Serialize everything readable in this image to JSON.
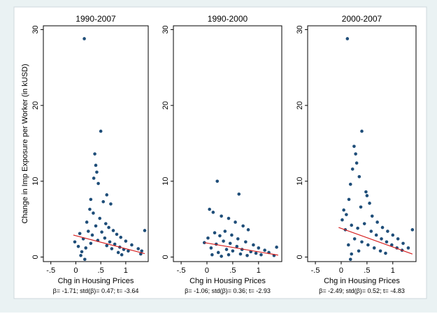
{
  "chart_data": [
    {
      "type": "scatter",
      "title": "1990-2007",
      "xlabel": "Chg in Housing Prices",
      "ylabel": "Change in Imp Exposure per Worker (in kUSD)",
      "note": "β= -1.71; std(β)= 0.47; t= -3.64",
      "xlim": [
        -0.65,
        1.45
      ],
      "ylim": [
        -0.6,
        30.5
      ],
      "xticks": [
        -0.5,
        0,
        0.5,
        1
      ],
      "xticklabels": [
        "-.5",
        "0",
        ".5",
        "1"
      ],
      "yticks": [
        0,
        10,
        20,
        30
      ],
      "yticklabels": [
        "0",
        "10",
        "20",
        "30"
      ],
      "fit": {
        "x": [
          -0.05,
          1.38
        ],
        "y": [
          2.9,
          0.45
        ]
      },
      "points": [
        [
          0.17,
          28.8
        ],
        [
          0.5,
          16.6
        ],
        [
          0.38,
          13.6
        ],
        [
          0.4,
          12.1
        ],
        [
          0.42,
          11.2
        ],
        [
          0.36,
          10.4
        ],
        [
          0.45,
          9.7
        ],
        [
          0.62,
          8.2
        ],
        [
          0.3,
          7.6
        ],
        [
          0.55,
          7.3
        ],
        [
          0.7,
          7.0
        ],
        [
          -0.02,
          2.0
        ],
        [
          0.08,
          3.1
        ],
        [
          0.22,
          4.6
        ],
        [
          0.28,
          6.3
        ],
        [
          0.35,
          5.8
        ],
        [
          0.48,
          5.1
        ],
        [
          0.6,
          4.4
        ],
        [
          0.66,
          3.9
        ],
        [
          0.75,
          3.5
        ],
        [
          0.82,
          3.0
        ],
        [
          0.9,
          2.6
        ],
        [
          1.0,
          2.1
        ],
        [
          1.12,
          1.6
        ],
        [
          1.25,
          1.1
        ],
        [
          1.32,
          0.8
        ],
        [
          1.38,
          3.5
        ],
        [
          1.3,
          0.4
        ],
        [
          0.05,
          1.4
        ],
        [
          0.15,
          2.4
        ],
        [
          0.25,
          3.4
        ],
        [
          0.33,
          2.9
        ],
        [
          0.4,
          4.1
        ],
        [
          0.52,
          3.3
        ],
        [
          0.58,
          2.5
        ],
        [
          0.68,
          2.0
        ],
        [
          0.78,
          1.7
        ],
        [
          0.88,
          1.3
        ],
        [
          0.96,
          1.0
        ],
        [
          1.05,
          0.8
        ],
        [
          0.12,
          0.7
        ],
        [
          0.2,
          1.2
        ],
        [
          0.3,
          1.8
        ],
        [
          0.44,
          2.2
        ],
        [
          0.62,
          1.5
        ],
        [
          0.72,
          1.1
        ],
        [
          0.85,
          0.6
        ],
        [
          0.92,
          0.3
        ],
        [
          0.18,
          -0.3
        ],
        [
          0.1,
          0.2
        ]
      ]
    },
    {
      "type": "scatter",
      "title": "1990-2000",
      "xlabel": "Chg in Housing Prices",
      "ylabel": "",
      "note": "β= -1.06; std(β)= 0.36; t= -2.93",
      "xlim": [
        -0.65,
        1.45
      ],
      "ylim": [
        -0.6,
        30.5
      ],
      "xticks": [
        -0.5,
        0,
        0.5,
        1
      ],
      "xticklabels": [
        "-.5",
        "0",
        ".5",
        "1"
      ],
      "yticks": [
        0,
        10,
        20,
        30
      ],
      "yticklabels": [
        "0",
        "10",
        "20",
        "30"
      ],
      "fit": {
        "x": [
          -0.05,
          1.38
        ],
        "y": [
          1.9,
          0.25
        ]
      },
      "points": [
        [
          0.2,
          10.0
        ],
        [
          0.62,
          8.3
        ],
        [
          0.05,
          6.3
        ],
        [
          0.12,
          5.9
        ],
        [
          0.28,
          5.4
        ],
        [
          0.42,
          5.1
        ],
        [
          0.55,
          4.6
        ],
        [
          0.7,
          4.1
        ],
        [
          0.8,
          3.6
        ],
        [
          -0.05,
          1.9
        ],
        [
          0.02,
          2.5
        ],
        [
          0.15,
          3.2
        ],
        [
          0.25,
          2.8
        ],
        [
          0.35,
          3.4
        ],
        [
          0.48,
          2.9
        ],
        [
          0.6,
          2.4
        ],
        [
          0.75,
          2.0
        ],
        [
          0.9,
          1.6
        ],
        [
          1.0,
          1.2
        ],
        [
          1.12,
          0.9
        ],
        [
          1.2,
          0.6
        ],
        [
          1.35,
          1.3
        ],
        [
          1.3,
          0.2
        ],
        [
          0.08,
          1.2
        ],
        [
          0.18,
          1.7
        ],
        [
          0.32,
          2.1
        ],
        [
          0.45,
          1.8
        ],
        [
          0.58,
          1.4
        ],
        [
          0.68,
          1.0
        ],
        [
          0.85,
          0.7
        ],
        [
          0.95,
          0.5
        ],
        [
          1.05,
          0.3
        ],
        [
          0.22,
          0.6
        ],
        [
          0.38,
          1.0
        ],
        [
          0.5,
          0.8
        ],
        [
          0.65,
          0.4
        ],
        [
          0.78,
          0.2
        ],
        [
          0.1,
          0.3
        ],
        [
          0.28,
          0.1
        ],
        [
          0.42,
          0.3
        ]
      ]
    },
    {
      "type": "scatter",
      "title": "2000-2007",
      "xlabel": "Chg in Housing Prices",
      "ylabel": "",
      "note": "β= -2.49; std(β)= 0.52; t= -4.83",
      "xlim": [
        -0.65,
        1.45
      ],
      "ylim": [
        -0.6,
        30.5
      ],
      "xticks": [
        -0.5,
        0,
        0.5,
        1
      ],
      "xticklabels": [
        "-.5",
        "0",
        ".5",
        "1"
      ],
      "yticks": [
        0,
        10,
        20,
        30
      ],
      "yticklabels": [
        "0",
        "10",
        "20",
        "30"
      ],
      "fit": {
        "x": [
          -0.05,
          1.38
        ],
        "y": [
          3.9,
          0.4
        ]
      },
      "points": [
        [
          0.12,
          28.8
        ],
        [
          0.4,
          16.6
        ],
        [
          0.25,
          14.6
        ],
        [
          0.28,
          13.6
        ],
        [
          0.3,
          12.4
        ],
        [
          0.22,
          11.6
        ],
        [
          0.35,
          10.6
        ],
        [
          0.18,
          9.6
        ],
        [
          0.48,
          8.6
        ],
        [
          0.5,
          8.1
        ],
        [
          0.15,
          7.6
        ],
        [
          0.55,
          7.1
        ],
        [
          0.05,
          6.2
        ],
        [
          0.02,
          4.9
        ],
        [
          0.1,
          5.6
        ],
        [
          0.38,
          6.6
        ],
        [
          0.6,
          5.4
        ],
        [
          0.7,
          4.6
        ],
        [
          0.8,
          3.9
        ],
        [
          0.9,
          3.4
        ],
        [
          1.0,
          2.9
        ],
        [
          1.1,
          2.4
        ],
        [
          1.2,
          1.8
        ],
        [
          1.3,
          1.2
        ],
        [
          1.38,
          3.6
        ],
        [
          0.08,
          3.6
        ],
        [
          0.2,
          4.2
        ],
        [
          0.32,
          3.8
        ],
        [
          0.45,
          4.4
        ],
        [
          0.58,
          3.4
        ],
        [
          0.68,
          2.9
        ],
        [
          0.78,
          2.4
        ],
        [
          0.88,
          2.0
        ],
        [
          0.98,
          1.6
        ],
        [
          1.08,
          1.2
        ],
        [
          1.18,
          0.9
        ],
        [
          0.14,
          1.6
        ],
        [
          0.26,
          2.4
        ],
        [
          0.4,
          2.0
        ],
        [
          0.52,
          1.6
        ],
        [
          0.64,
          1.2
        ],
        [
          0.76,
          0.8
        ],
        [
          0.86,
          0.5
        ],
        [
          0.2,
          0.4
        ],
        [
          0.34,
          0.8
        ],
        [
          0.18,
          -0.3
        ]
      ]
    }
  ]
}
